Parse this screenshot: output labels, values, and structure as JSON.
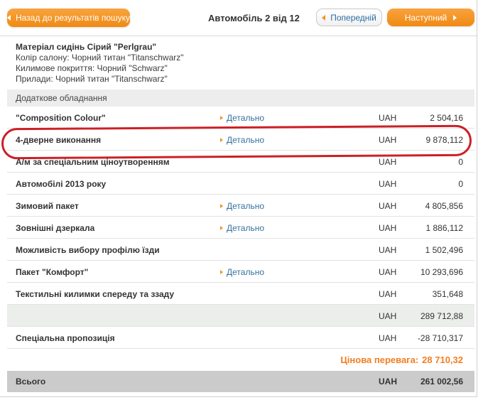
{
  "colors": {
    "accent_orange": "#f6921e",
    "link_blue": "#35719e",
    "annotation_red": "#cb2026",
    "total_bar_gray": "#cbcbcb",
    "subtotal_bg": "#ebeeeb"
  },
  "topbar": {
    "back_label": "Назад до результатів пошуку",
    "title": "Автомобіль 2 від 12",
    "prev_label": "Попередній",
    "next_label": "Наступний"
  },
  "vehicle_info": {
    "line1": "Матеріал сидінь Сірий \"Perlgrau\"",
    "line2": "Колір салону: Чорний титан \"Titanschwarz\"",
    "line3": "Килимове покриття: Чорний \"Schwarz\"",
    "line4": "Прилади: Чорний титан \"Titanschwarz\""
  },
  "section": {
    "title": "Додаткове обладнання"
  },
  "table": {
    "detail_label": "Детально",
    "currency": "UAH",
    "rows": [
      {
        "name": "\"Composition Colour\"",
        "detail": true,
        "price": "2 504,16"
      },
      {
        "name": "4-дверне виконання",
        "detail": true,
        "price": "9 878,112",
        "highlighted": true
      },
      {
        "name": "А/м за спеціальним ціноутворенням",
        "detail": false,
        "price": "0"
      },
      {
        "name": "Автомобілі 2013 року",
        "detail": false,
        "price": "0"
      },
      {
        "name": "Зимовий пакет",
        "detail": true,
        "price": "4 805,856"
      },
      {
        "name": "Зовнішні дзеркала",
        "detail": true,
        "price": "1 886,112"
      },
      {
        "name": "Можливість вибору профілю їзди",
        "detail": false,
        "price": "1 502,496"
      },
      {
        "name": "Пакет \"Комфорт\"",
        "detail": true,
        "price": "10 293,696"
      },
      {
        "name": "Текстильні килимки спереду та ззаду",
        "detail": false,
        "price": "351,648"
      },
      {
        "name": "",
        "detail": false,
        "price": "289 712,88",
        "subtotal": true
      },
      {
        "name": "Спеціальна пропозиція",
        "detail": false,
        "price": "-28 710,317"
      }
    ]
  },
  "summary": {
    "advantage_label": "Цінова перевага:",
    "advantage_value": "28 710,32",
    "total_label": "Всього",
    "total_currency": "UAH",
    "total_value": "261 002,56"
  }
}
